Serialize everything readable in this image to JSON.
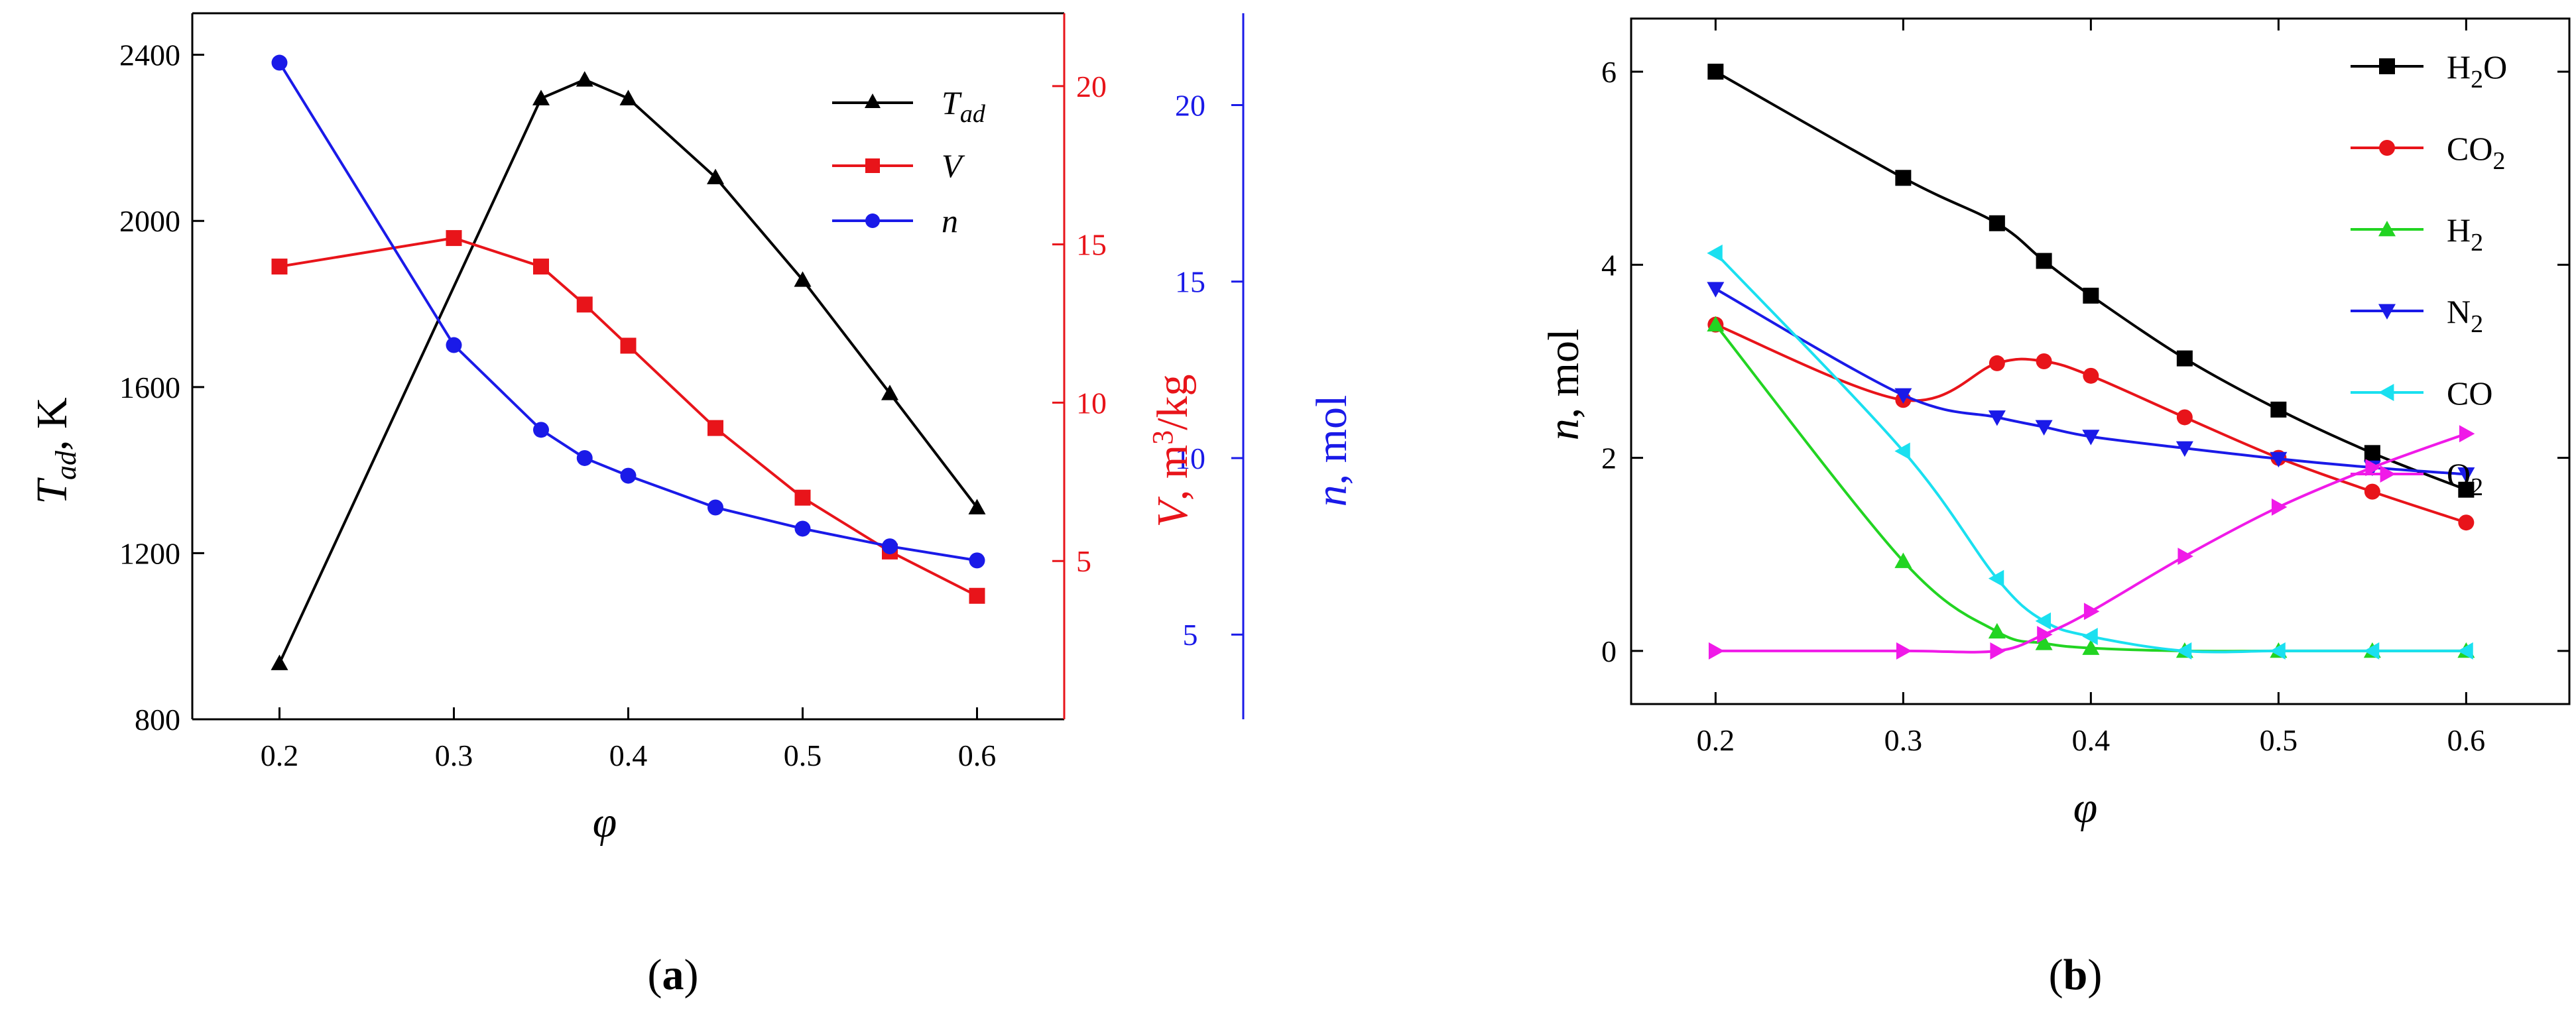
{
  "figure": {
    "panel_a_label": "(a)",
    "panel_b_label": "(b)",
    "colors": {
      "black": "#000000",
      "red": "#e8141a",
      "blue": "#1a1ae8",
      "green": "#22d422",
      "cyan": "#1ae0f0",
      "magenta": "#f01ae8"
    }
  },
  "chart_data": [
    {
      "panel": "a",
      "type": "line",
      "x": [
        0.2,
        0.3,
        0.35,
        0.375,
        0.4,
        0.45,
        0.5,
        0.55,
        0.6
      ],
      "xlim": [
        0.15,
        0.65
      ],
      "xticks": [
        0.2,
        0.3,
        0.4,
        0.5,
        0.6
      ],
      "xlabel": "φ",
      "axes": {
        "left": {
          "label_main": "T",
          "label_sub": "ad",
          "label_rest": ", K",
          "ylim": [
            800,
            2500
          ],
          "ticks": [
            800,
            1200,
            1600,
            2000,
            2400
          ],
          "color": "#000000"
        },
        "right1": {
          "label_main": "V",
          "label_rest": ", m",
          "label_sup": "3",
          "label_tail": "/kg",
          "ylim": [
            0,
            22.3
          ],
          "ticks": [
            5,
            10,
            15,
            20
          ],
          "color": "#e8141a"
        },
        "right2": {
          "label_main": "n",
          "label_rest": ", mol",
          "ylim": [
            2.6,
            22.6
          ],
          "ticks": [
            5,
            10,
            15,
            20
          ],
          "color": "#1a1ae8"
        }
      },
      "series": [
        {
          "name": "T",
          "sub": "ad",
          "axis": "left",
          "marker": "triangle-up",
          "color": "#000000",
          "values": [
            935,
            null,
            2295,
            2340,
            2295,
            2105,
            1858,
            1585,
            1310
          ]
        },
        {
          "name": "V",
          "sub": "",
          "axis": "right1",
          "marker": "square",
          "color": "#e8141a",
          "values": [
            14.3,
            15.2,
            14.3,
            13.1,
            11.8,
            9.2,
            7.0,
            5.3,
            3.9
          ]
        },
        {
          "name": "n",
          "sub": "",
          "axis": "right2",
          "marker": "circle",
          "color": "#1a1ae8",
          "values": [
            21.2,
            13.2,
            10.8,
            10.0,
            9.5,
            8.6,
            8.0,
            7.5,
            7.1
          ]
        }
      ]
    },
    {
      "panel": "b",
      "type": "line",
      "x": [
        0.2,
        0.3,
        0.35,
        0.375,
        0.4,
        0.45,
        0.5,
        0.55,
        0.6
      ],
      "xlim": [
        0.155,
        0.655
      ],
      "xticks": [
        0.2,
        0.3,
        0.4,
        0.5,
        0.6
      ],
      "xlabel": "φ",
      "ylabel": "n, mol",
      "ylim": [
        -0.55,
        6.55
      ],
      "yticks": [
        0,
        2,
        4,
        6
      ],
      "series": [
        {
          "name": "H",
          "sub": "2",
          "tail": "O",
          "marker": "square",
          "color": "#000000",
          "values": [
            6.0,
            4.9,
            4.43,
            4.04,
            3.68,
            3.03,
            2.5,
            2.05,
            1.67
          ]
        },
        {
          "name": "CO",
          "sub": "2",
          "tail": "",
          "marker": "circle",
          "color": "#e8141a",
          "values": [
            3.38,
            2.6,
            2.98,
            3.0,
            2.85,
            2.42,
            2.0,
            1.65,
            1.33
          ]
        },
        {
          "name": "H",
          "sub": "2",
          "tail": "",
          "marker": "triangle-up",
          "color": "#22d422",
          "values": [
            3.38,
            0.93,
            0.2,
            0.08,
            0.03,
            0.0,
            0.0,
            0.0,
            0.0
          ]
        },
        {
          "name": "N",
          "sub": "2",
          "tail": "",
          "marker": "triangle-down",
          "color": "#1a1ae8",
          "values": [
            3.75,
            2.65,
            2.42,
            2.32,
            2.22,
            2.1,
            1.99,
            1.9,
            1.83
          ]
        },
        {
          "name": "CO",
          "sub": "",
          "tail": "",
          "marker": "triangle-left",
          "color": "#1ae0f0",
          "values": [
            4.12,
            2.07,
            0.75,
            0.31,
            0.15,
            0.0,
            0.0,
            0.0,
            0.0
          ]
        },
        {
          "name": "O",
          "sub": "2",
          "tail": "",
          "marker": "triangle-right",
          "color": "#f01ae8",
          "values": [
            0.0,
            0.0,
            0.0,
            0.17,
            0.41,
            0.98,
            1.49,
            1.9,
            2.25
          ]
        }
      ]
    }
  ]
}
